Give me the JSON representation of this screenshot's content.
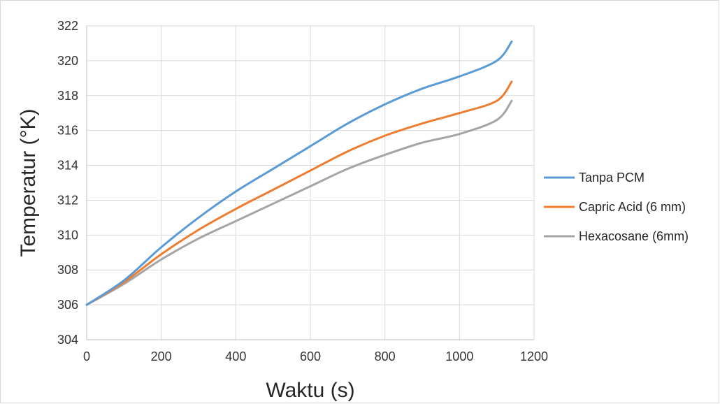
{
  "chart_data": {
    "type": "line",
    "title": "",
    "xlabel": "Waktu (s)",
    "ylabel": "Temperatur (°K)",
    "xlim": [
      0,
      1200
    ],
    "ylim": [
      304,
      322
    ],
    "x_ticks": [
      0,
      200,
      400,
      600,
      800,
      1000,
      1200
    ],
    "y_ticks": [
      304,
      306,
      308,
      310,
      312,
      314,
      316,
      318,
      320,
      322
    ],
    "grid": true,
    "legend_position": "right",
    "series": [
      {
        "name": "Tanpa PCM",
        "color": "#5b9bd5",
        "x": [
          0,
          100,
          200,
          300,
          400,
          500,
          600,
          700,
          800,
          900,
          1000,
          1100,
          1140
        ],
        "y": [
          306.0,
          307.4,
          309.3,
          311.0,
          312.5,
          313.8,
          315.1,
          316.4,
          317.5,
          318.4,
          319.1,
          320.0,
          321.1
        ]
      },
      {
        "name": "Capric Acid (6 mm)",
        "color": "#ed7d31",
        "x": [
          0,
          100,
          200,
          300,
          400,
          500,
          600,
          700,
          800,
          900,
          1000,
          1100,
          1140
        ],
        "y": [
          306.0,
          307.3,
          308.9,
          310.3,
          311.5,
          312.6,
          313.7,
          314.8,
          315.7,
          316.4,
          317.0,
          317.7,
          318.8
        ]
      },
      {
        "name": "Hexacosane (6mm)",
        "color": "#a5a5a5",
        "x": [
          0,
          100,
          200,
          300,
          400,
          500,
          600,
          700,
          800,
          900,
          1000,
          1100,
          1140
        ],
        "y": [
          306.0,
          307.2,
          308.6,
          309.8,
          310.8,
          311.8,
          312.8,
          313.8,
          314.6,
          315.3,
          315.8,
          316.6,
          317.7
        ]
      }
    ]
  }
}
